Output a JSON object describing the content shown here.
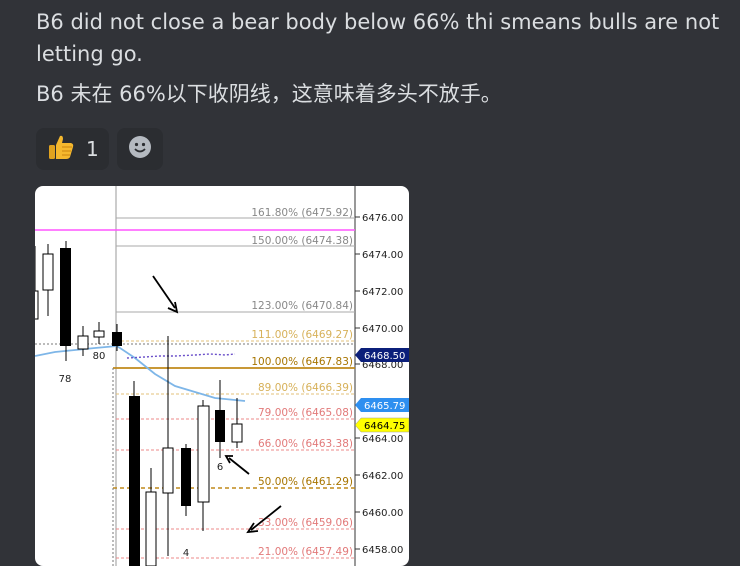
{
  "message": {
    "english_text": "B6 did not close a bear body below 66% thi smeans bulls are not letting go.",
    "chinese_text": "B6 未在 66%以下收阴线，这意味着多头不放手。"
  },
  "reactions": [
    {
      "emoji": "thumbs-up",
      "count": "1"
    },
    {
      "emoji": "add-reaction"
    }
  ],
  "chart": {
    "fib_levels": [
      {
        "label": "161.80% (6475.92)",
        "color": "#8a8a8a"
      },
      {
        "label": "150.00% (6474.38)",
        "color": "#8a8a8a"
      },
      {
        "label": "123.00% (6470.84)",
        "color": "#8a8a8a"
      },
      {
        "label": "111.00% (6469.27)",
        "color": "#d7b15a"
      },
      {
        "label": "100.00% (6467.83)",
        "color": "#b8860b"
      },
      {
        "label": "89.00% (6466.39)",
        "color": "#d7b15a"
      },
      {
        "label": "79.00% (6465.08)",
        "color": "#e27a7a"
      },
      {
        "label": "66.00% (6463.38)",
        "color": "#e27a7a"
      },
      {
        "label": "50.00% (6461.29)",
        "color": "#b8860b"
      },
      {
        "label": "33.00% (6459.06)",
        "color": "#e27a7a"
      },
      {
        "label": "21.00% (6457.49)",
        "color": "#e27a7a"
      }
    ],
    "price_axis": [
      "6476.00",
      "6474.00",
      "6472.00",
      "6470.00",
      "6468.00",
      "6466.00",
      "6464.00",
      "6462.00",
      "6460.00",
      "6458.00"
    ],
    "tags": [
      {
        "label": "6468.50",
        "bg": "#0b1f7a",
        "fg": "#ffffff"
      },
      {
        "label": "6465.79",
        "bg": "#2e8ff0",
        "fg": "#ffffff"
      },
      {
        "label": "6464.75",
        "bg": "#ffff00",
        "fg": "#000000"
      }
    ],
    "bar_labels": [
      "78",
      "80",
      "6",
      "4"
    ]
  }
}
